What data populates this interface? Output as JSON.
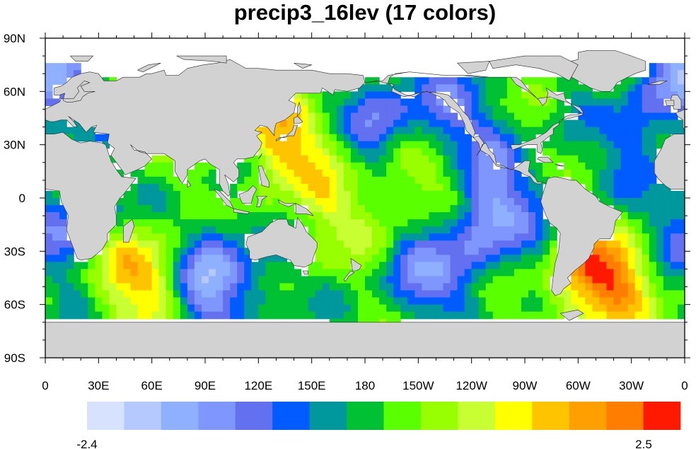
{
  "chart_data": {
    "type": "heatmap",
    "title": "precip3_16lev (17 colors)",
    "map": "global cylindrical equidistant, centered on 180",
    "x_ticks": [
      "0",
      "30E",
      "60E",
      "90E",
      "120E",
      "150E",
      "180",
      "150W",
      "120W",
      "90W",
      "60W",
      "30W",
      "0"
    ],
    "y_ticks": [
      "90N",
      "60N",
      "30N",
      "0",
      "30S",
      "60S",
      "90S"
    ],
    "colorbar": {
      "min_label": "-2.4",
      "max_label": "2.5",
      "colors": [
        "#d6e2ff",
        "#b5c9ff",
        "#8fb0ff",
        "#7f96ff",
        "#6370f0",
        "#005cff",
        "#00979d",
        "#00c133",
        "#5aff00",
        "#97ff00",
        "#c7ff33",
        "#ffff00",
        "#ffc400",
        "#ffa000",
        "#ff7d00",
        "#ff1900"
      ]
    },
    "colors": {
      "land": "#d2d2d2",
      "coast": "#2b2b2b",
      "no_data": "#ffffff"
    },
    "features": [
      {
        "name": "high anomaly",
        "lon": 60,
        "lat": -42,
        "level": 14
      },
      {
        "name": "high anomaly",
        "lon": 312,
        "lat": -45,
        "level": 15
      },
      {
        "name": "high anomaly",
        "lon": 137,
        "lat": 33,
        "level": 12
      },
      {
        "name": "high anomaly",
        "lon": 173,
        "lat": 1,
        "level": 11
      },
      {
        "name": "high anomaly",
        "lon": 210,
        "lat": 17,
        "level": 11
      },
      {
        "name": "low anomaly",
        "lon": 85,
        "lat": -38,
        "level": 3
      },
      {
        "name": "low anomaly",
        "lon": 100,
        "lat": -52,
        "level": 4
      },
      {
        "name": "low anomaly",
        "lon": 215,
        "lat": -45,
        "level": 4
      },
      {
        "name": "low anomaly",
        "lon": 190,
        "lat": 45,
        "level": 4
      },
      {
        "name": "low anomaly",
        "lon": 185,
        "lat": 15,
        "level": 5
      },
      {
        "name": "low anomaly",
        "lon": 230,
        "lat": 45,
        "level": 4
      },
      {
        "name": "low anomaly",
        "lon": 335,
        "lat": 35,
        "level": 5
      },
      {
        "name": "low anomaly",
        "lon": 248,
        "lat": -17,
        "level": 4
      },
      {
        "name": "low anomaly",
        "lon": 255,
        "lat": 8,
        "level": 5
      },
      {
        "name": "low anomaly",
        "lon": 6,
        "lat": 70,
        "level": 5
      },
      {
        "name": "low anomaly",
        "lon": 355,
        "lat": 63,
        "level": 5
      },
      {
        "name": "low anomaly",
        "lon": 10,
        "lat": -15,
        "level": 4
      }
    ]
  }
}
